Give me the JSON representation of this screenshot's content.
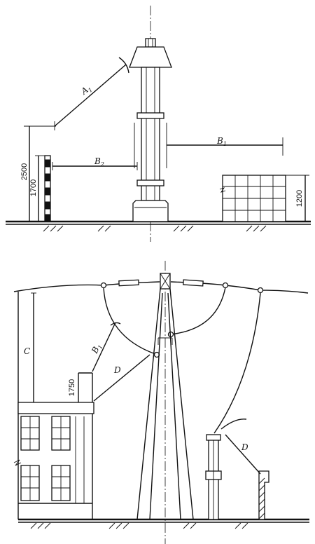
{
  "top_view": {
    "labels": {
      "a1": {
        "main": "A",
        "sub": "1"
      },
      "b1": {
        "main": "B",
        "sub": "1"
      },
      "b2": {
        "main": "B",
        "sub": "2"
      }
    },
    "dimensions": {
      "d2500": "2500",
      "d1700": "1700",
      "d1200": "1200"
    }
  },
  "bottom_view": {
    "labels": {
      "c": "C",
      "b1": {
        "main": "B",
        "sub": "1"
      },
      "d_left": "D",
      "d_right": "D"
    },
    "dimensions": {
      "d1750": "1750"
    }
  }
}
